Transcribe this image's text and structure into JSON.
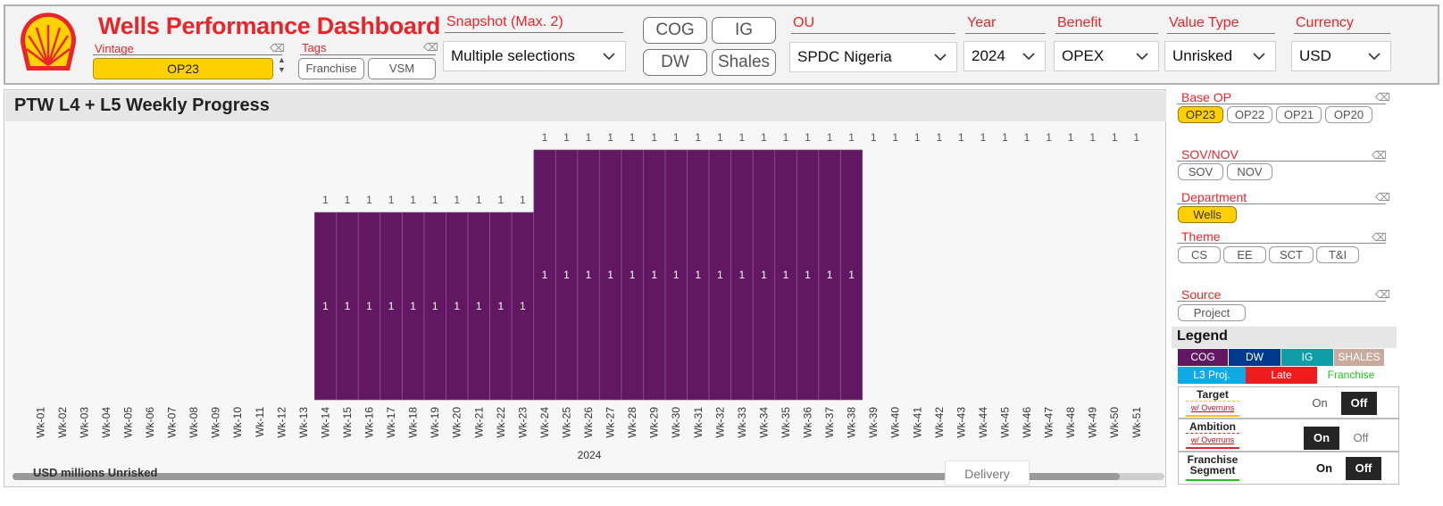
{
  "header": {
    "title": "Wells Performance Dashboard",
    "vintage_label": "Vintage",
    "vintage_value": "OP23",
    "tags_label": "Tags",
    "tags": [
      "Franchise",
      "VSM"
    ],
    "snapshot_label": "Snapshot (Max. 2)",
    "snapshot_value": "Multiple selections",
    "type_buttons": [
      "COG",
      "IG",
      "DW",
      "Shales"
    ],
    "ou_label": "OU",
    "ou_value": "SPDC Nigeria",
    "year_label": "Year",
    "year_value": "2024",
    "benefit_label": "Benefit",
    "benefit_value": "OPEX",
    "value_type_label": "Value Type",
    "value_type_value": "Unrisked",
    "currency_label": "Currency",
    "currency_value": "USD"
  },
  "chart": {
    "title": "PTW L4 + L5 Weekly Progress",
    "footnote": "USD millions Unrisked",
    "year_label": "2024",
    "tab_label": "Delivery"
  },
  "chart_data": {
    "type": "bar",
    "stacked": true,
    "bar_color": "#611762",
    "categories": [
      "Wk-01",
      "Wk-02",
      "Wk-03",
      "Wk-04",
      "Wk-05",
      "Wk-06",
      "Wk-07",
      "Wk-08",
      "Wk-09",
      "Wk-10",
      "Wk-11",
      "Wk-12",
      "Wk-13",
      "Wk-14",
      "Wk-15",
      "Wk-16",
      "Wk-17",
      "Wk-18",
      "Wk-19",
      "Wk-20",
      "Wk-21",
      "Wk-22",
      "Wk-23",
      "Wk-24",
      "Wk-25",
      "Wk-26",
      "Wk-27",
      "Wk-28",
      "Wk-29",
      "Wk-30",
      "Wk-31",
      "Wk-32",
      "Wk-33",
      "Wk-34",
      "Wk-35",
      "Wk-36",
      "Wk-37",
      "Wk-38",
      "Wk-39",
      "Wk-40",
      "Wk-41",
      "Wk-42",
      "Wk-43",
      "Wk-44",
      "Wk-45",
      "Wk-46",
      "Wk-47",
      "Wk-48",
      "Wk-49",
      "Wk-50",
      "Wk-51"
    ],
    "segment_label": "1",
    "total_label": "1",
    "bar_start": 14,
    "bar_end_low": 23,
    "bar_end_high": 38,
    "low_level": 0.75,
    "high_level": 1.0,
    "total_labels_from": 14
  },
  "sidebar": {
    "base_op_label": "Base OP",
    "base_op": [
      "OP23",
      "OP22",
      "OP21",
      "OP20"
    ],
    "sov_label": "SOV/NOV",
    "sov": [
      "SOV",
      "NOV"
    ],
    "department_label": "Department",
    "department": [
      "Wells"
    ],
    "theme_label": "Theme",
    "theme": [
      "CS",
      "EE",
      "SCT",
      "T&I"
    ],
    "source_label": "Source",
    "source": [
      "Project"
    ]
  },
  "legend": {
    "title": "Legend",
    "chips": [
      {
        "label": "COG",
        "bg": "#611762",
        "fg": "#ffffff"
      },
      {
        "label": "DW",
        "bg": "#003a8c",
        "fg": "#ffffff"
      },
      {
        "label": "IG",
        "bg": "#0f9ea8",
        "fg": "#ffffff"
      },
      {
        "label": "SHALES",
        "bg": "#c8ab9e",
        "fg": "#ffffff"
      },
      {
        "label": "L3 Proj.",
        "bg": "#11a8e6",
        "fg": "#ffffff"
      },
      {
        "label": "Late",
        "bg": "#ee1c1c",
        "fg": "#ffffff"
      },
      {
        "label": "Franchise",
        "bg": "#ffffff",
        "fg": "#22c322"
      }
    ],
    "target_label": "Target",
    "target_sub": "w/ Overruns",
    "ambition_label": "Ambition",
    "ambition_sub": "w/ Overruns",
    "franchise_label": "Franchise",
    "franchise_sub": "Segment",
    "on": "On",
    "off": "Off"
  }
}
